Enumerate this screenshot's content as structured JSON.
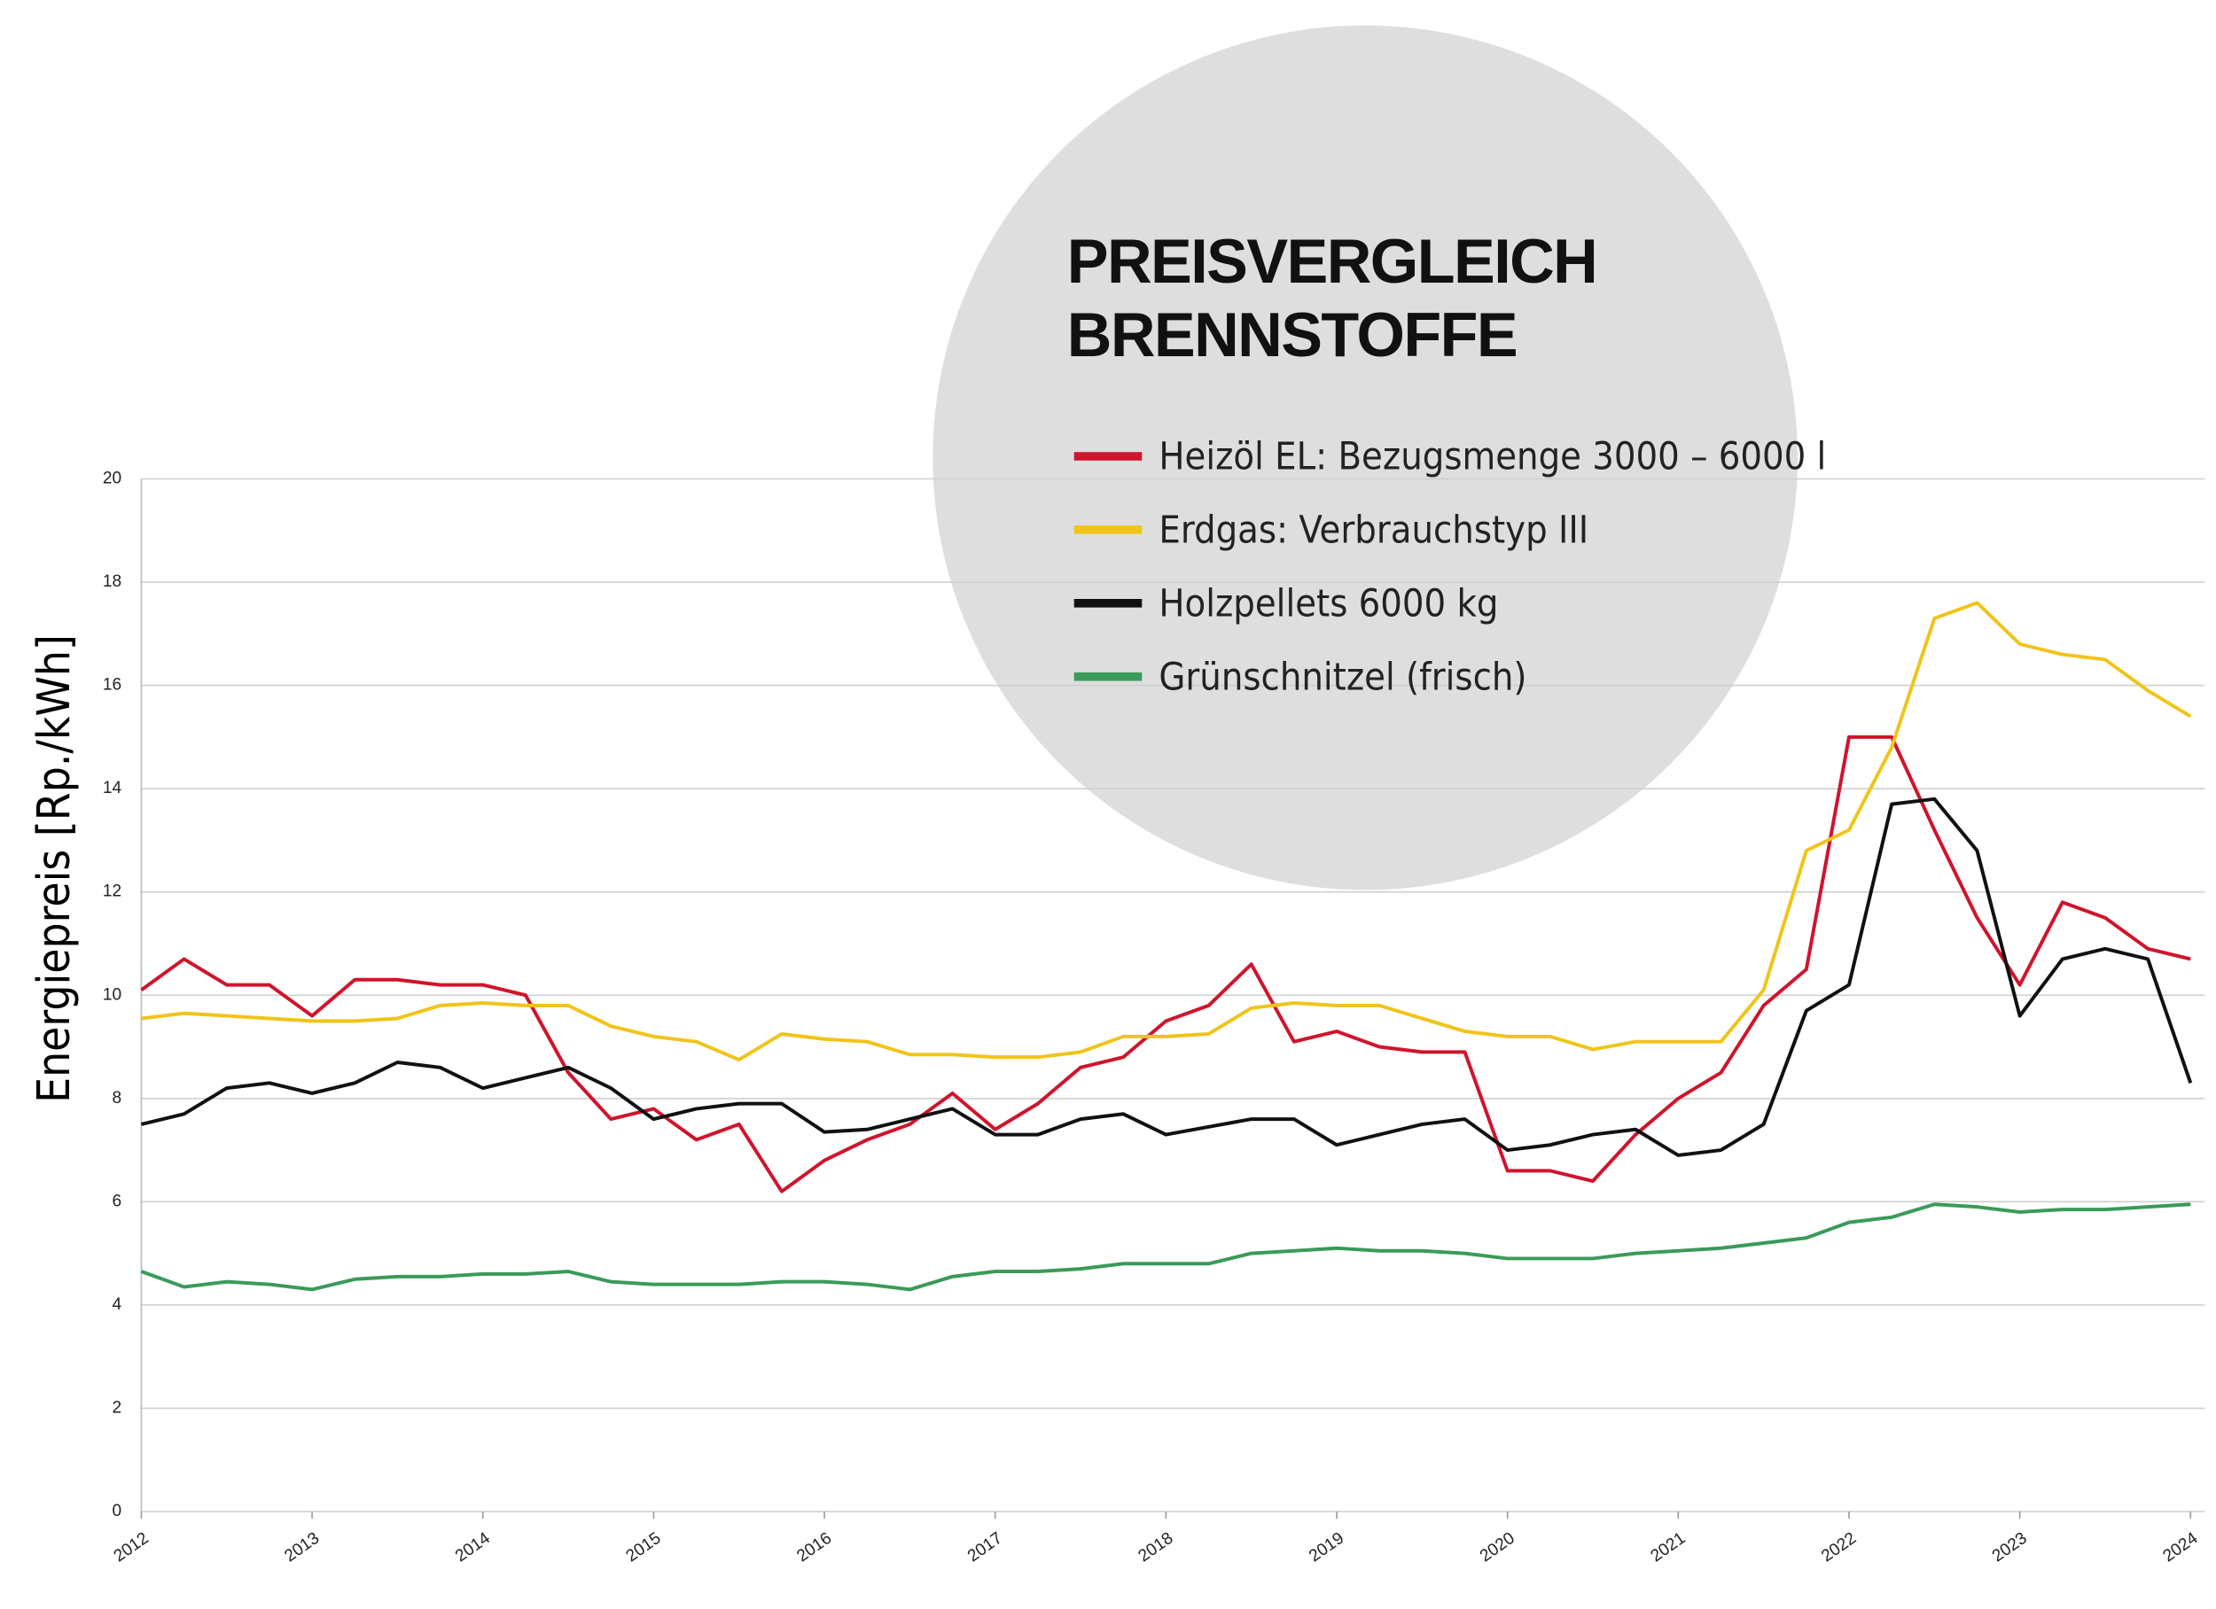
{
  "chart_data": {
    "type": "line",
    "title": "PREISVERGLEICH BRENNSTOFFE",
    "y_label": "Energiepreis [Rp./kWh]",
    "x": [
      2012,
      2012.25,
      2012.5,
      2012.75,
      2013,
      2013.25,
      2013.5,
      2013.75,
      2014,
      2014.25,
      2014.5,
      2014.75,
      2015,
      2015.25,
      2015.5,
      2015.75,
      2016,
      2016.25,
      2016.5,
      2016.75,
      2017,
      2017.25,
      2017.5,
      2017.75,
      2018,
      2018.25,
      2018.5,
      2018.75,
      2019,
      2019.25,
      2019.5,
      2019.75,
      2020,
      2020.25,
      2020.5,
      2020.75,
      2021,
      2021.25,
      2021.5,
      2021.75,
      2022,
      2022.25,
      2022.5,
      2022.75,
      2023,
      2023.25,
      2023.5,
      2023.75,
      2024
    ],
    "series": [
      {
        "name": "Heizöl EL: Bezugsmenge 3000 – 6000 l",
        "color": "#d0142c",
        "values": [
          10.1,
          10.7,
          10.2,
          10.2,
          9.6,
          10.3,
          10.3,
          10.2,
          10.2,
          10.0,
          8.5,
          7.6,
          7.8,
          7.2,
          7.5,
          6.2,
          6.8,
          7.2,
          7.5,
          8.1,
          7.4,
          7.9,
          8.6,
          8.8,
          9.5,
          9.8,
          10.6,
          9.1,
          9.3,
          9.0,
          8.9,
          8.9,
          6.6,
          6.6,
          6.4,
          7.3,
          8.0,
          8.5,
          9.8,
          10.5,
          15.0,
          15.0,
          13.2,
          11.5,
          10.2,
          11.8,
          11.5,
          10.9,
          10.7
        ]
      },
      {
        "name": "Erdgas: Verbrauchstyp III",
        "color": "#f0c419",
        "values": [
          9.55,
          9.65,
          9.6,
          9.55,
          9.5,
          9.5,
          9.55,
          9.8,
          9.85,
          9.8,
          9.8,
          9.4,
          9.2,
          9.1,
          8.75,
          9.25,
          9.15,
          9.1,
          8.85,
          8.85,
          8.8,
          8.8,
          8.9,
          9.2,
          9.2,
          9.25,
          9.75,
          9.85,
          9.8,
          9.8,
          9.55,
          9.3,
          9.2,
          9.2,
          8.95,
          9.1,
          9.1,
          9.1,
          10.1,
          12.8,
          13.2,
          14.8,
          17.3,
          17.6,
          16.8,
          16.6,
          16.5,
          15.9,
          15.4
        ]
      },
      {
        "name": "Holzpellets 6000 kg",
        "color": "#111111",
        "values": [
          7.5,
          7.7,
          8.2,
          8.3,
          8.1,
          8.3,
          8.7,
          8.6,
          8.2,
          8.4,
          8.6,
          8.2,
          7.6,
          7.8,
          7.9,
          7.9,
          7.35,
          7.4,
          7.6,
          7.8,
          7.3,
          7.3,
          7.6,
          7.7,
          7.3,
          7.45,
          7.6,
          7.6,
          7.1,
          7.3,
          7.5,
          7.6,
          7.0,
          7.1,
          7.3,
          7.4,
          6.9,
          7.0,
          7.5,
          9.7,
          10.2,
          13.7,
          13.8,
          12.8,
          9.6,
          10.7,
          10.9,
          10.7,
          8.3
        ]
      },
      {
        "name": "Grünschnitzel (frisch)",
        "color": "#3a9a5a",
        "values": [
          4.65,
          4.35,
          4.45,
          4.4,
          4.3,
          4.5,
          4.55,
          4.55,
          4.6,
          4.6,
          4.65,
          4.45,
          4.4,
          4.4,
          4.4,
          4.45,
          4.45,
          4.4,
          4.3,
          4.55,
          4.65,
          4.65,
          4.7,
          4.8,
          4.8,
          4.8,
          5.0,
          5.05,
          5.1,
          5.05,
          5.05,
          5.0,
          4.9,
          4.9,
          4.9,
          5.0,
          5.05,
          5.1,
          5.2,
          5.3,
          5.6,
          5.7,
          5.95,
          5.9,
          5.8,
          5.85,
          5.85,
          5.9,
          5.95
        ]
      }
    ],
    "xlim": [
      2012,
      2024
    ],
    "xticks": [
      2012,
      2013,
      2014,
      2015,
      2016,
      2017,
      2018,
      2019,
      2020,
      2021,
      2022,
      2023,
      2024
    ],
    "ylim": [
      0,
      20
    ],
    "yticks": [
      0,
      2,
      4,
      6,
      8,
      10,
      12,
      14,
      16,
      18,
      20
    ],
    "grid": true,
    "legend_background": "#dedede"
  }
}
